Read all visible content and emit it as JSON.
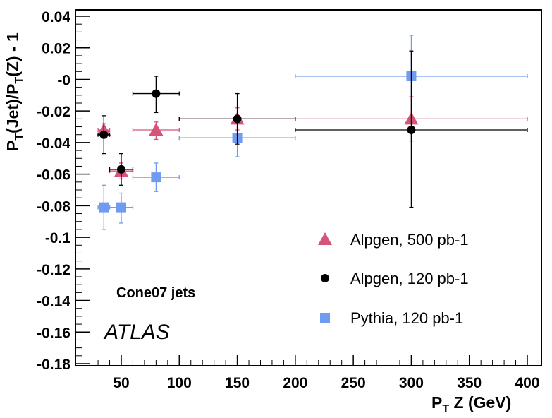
{
  "chart_data": {
    "type": "scatter",
    "xlabel_main": "P",
    "xlabel_sub": "T",
    "xlabel_rest": " Z (GeV)",
    "ylabel_parts": [
      "P",
      "T",
      "(Jet)/P",
      "T",
      "(Z) - 1"
    ],
    "xlim": [
      20,
      420
    ],
    "ylim": [
      -0.18,
      0.04
    ],
    "xticks": [
      50,
      100,
      150,
      200,
      250,
      300,
      350,
      400
    ],
    "xtick_labels": [
      "50",
      "100",
      "150",
      "200",
      "250",
      "300",
      "350",
      "400"
    ],
    "yticks": [
      0.04,
      0.02,
      0,
      -0.02,
      -0.04,
      -0.06,
      -0.08,
      -0.1,
      -0.12,
      -0.14,
      -0.16,
      -0.18
    ],
    "ytick_labels": [
      "0.04",
      "0.02",
      "-0",
      "-0.02",
      "-0.04",
      "-0.06",
      "-0.08",
      "-0.1",
      "-0.12",
      "-0.14",
      "-0.16",
      "-0.18"
    ],
    "annotations": [
      "Cone07 jets",
      "ATLAS"
    ],
    "legend_position": "bottom-right",
    "series": [
      {
        "name": "Alpgen, 500 pb-1",
        "marker": "triangle",
        "color": "#d6537a",
        "points": [
          {
            "x": 35,
            "y": -0.032,
            "xlo": 30,
            "xhi": 40,
            "ylo": -0.036,
            "yhi": -0.028
          },
          {
            "x": 50,
            "y": -0.058,
            "xlo": 40,
            "xhi": 60,
            "ylo": -0.063,
            "yhi": -0.053
          },
          {
            "x": 80,
            "y": -0.032,
            "xlo": 60,
            "xhi": 100,
            "ylo": -0.038,
            "yhi": -0.027
          },
          {
            "x": 150,
            "y": -0.025,
            "xlo": 100,
            "xhi": 200,
            "ylo": -0.032,
            "yhi": -0.018
          },
          {
            "x": 300,
            "y": -0.025,
            "xlo": 200,
            "xhi": 400,
            "ylo": -0.039,
            "yhi": -0.011
          }
        ]
      },
      {
        "name": "Alpgen, 120 pb-1",
        "marker": "circle",
        "color": "#000000",
        "points": [
          {
            "x": 35,
            "y": -0.035,
            "xlo": 30,
            "xhi": 40,
            "ylo": -0.047,
            "yhi": -0.023
          },
          {
            "x": 50,
            "y": -0.057,
            "xlo": 40,
            "xhi": 60,
            "ylo": -0.067,
            "yhi": -0.047
          },
          {
            "x": 80,
            "y": -0.009,
            "xlo": 60,
            "xhi": 100,
            "ylo": -0.021,
            "yhi": 0.002
          },
          {
            "x": 150,
            "y": -0.025,
            "xlo": 100,
            "xhi": 200,
            "ylo": -0.041,
            "yhi": -0.009
          },
          {
            "x": 300,
            "y": -0.032,
            "xlo": 200,
            "xhi": 400,
            "ylo": -0.081,
            "yhi": 0.018
          }
        ]
      },
      {
        "name": "Pythia, 120 pb-1",
        "marker": "square",
        "color": "#6f9cf0",
        "points": [
          {
            "x": 35,
            "y": -0.081,
            "xlo": 30,
            "xhi": 40,
            "ylo": -0.095,
            "yhi": -0.067
          },
          {
            "x": 50,
            "y": -0.081,
            "xlo": 40,
            "xhi": 60,
            "ylo": -0.091,
            "yhi": -0.072
          },
          {
            "x": 80,
            "y": -0.062,
            "xlo": 60,
            "xhi": 100,
            "ylo": -0.071,
            "yhi": -0.053
          },
          {
            "x": 150,
            "y": -0.037,
            "xlo": 100,
            "xhi": 200,
            "ylo": -0.049,
            "yhi": -0.025
          },
          {
            "x": 300,
            "y": 0.002,
            "xlo": 200,
            "xhi": 400,
            "ylo": -0.024,
            "yhi": 0.028
          }
        ]
      }
    ]
  }
}
